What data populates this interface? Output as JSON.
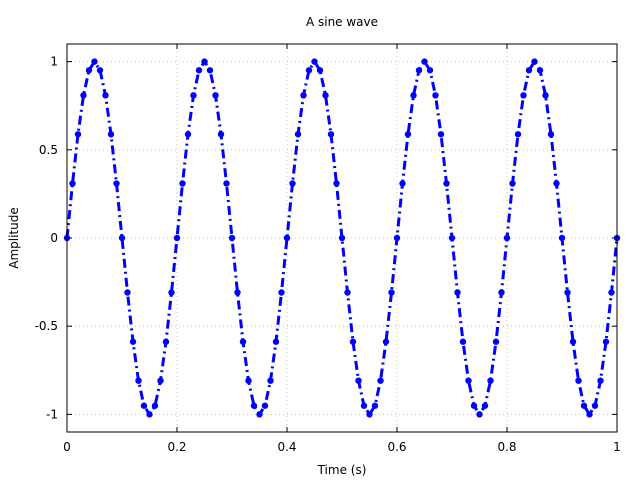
{
  "chart_data": {
    "type": "line",
    "title": "A sine wave",
    "xlabel": "Time (s)",
    "ylabel": "Amplitude",
    "xlim": [
      0,
      1
    ],
    "ylim": [
      -1.1,
      1.1
    ],
    "xticks": [
      0,
      0.2,
      0.4,
      0.6,
      0.8,
      1
    ],
    "xtick_labels": [
      "0",
      "0.2",
      "0.4",
      "0.6",
      "0.8",
      "1"
    ],
    "yticks": [
      -1,
      -0.5,
      0,
      0.5,
      1
    ],
    "ytick_labels": [
      "-1",
      "-0.5",
      "0",
      "0.5",
      "1"
    ],
    "grid": true,
    "line_style": "dash-dot",
    "marker": "circle",
    "color": "#0000ff",
    "series": [
      {
        "x": [
          0,
          0.01,
          0.02,
          0.03,
          0.04,
          0.05,
          0.06,
          0.07,
          0.08,
          0.09,
          0.1,
          0.11,
          0.12,
          0.13,
          0.14,
          0.15,
          0.16,
          0.17,
          0.18,
          0.19,
          0.2,
          0.21,
          0.22,
          0.23,
          0.24,
          0.25,
          0.26,
          0.27,
          0.28,
          0.29,
          0.3,
          0.31,
          0.32,
          0.33,
          0.34,
          0.35,
          0.36,
          0.37,
          0.38,
          0.39,
          0.4,
          0.41,
          0.42,
          0.43,
          0.44,
          0.45,
          0.46,
          0.47,
          0.48,
          0.49,
          0.5,
          0.51,
          0.52,
          0.53,
          0.54,
          0.55,
          0.56,
          0.57,
          0.58,
          0.59,
          0.6,
          0.61,
          0.62,
          0.63,
          0.64,
          0.65,
          0.66,
          0.67,
          0.68,
          0.69,
          0.7,
          0.71,
          0.72,
          0.73,
          0.74,
          0.75,
          0.76,
          0.77,
          0.78,
          0.79,
          0.8,
          0.81,
          0.82,
          0.83,
          0.84,
          0.85,
          0.86,
          0.87,
          0.88,
          0.89,
          0.9,
          0.91,
          0.92,
          0.93,
          0.94,
          0.95,
          0.96,
          0.97,
          0.98,
          0.99,
          1.0
        ],
        "y": [
          0,
          0.309,
          0.588,
          0.809,
          0.951,
          1,
          0.951,
          0.809,
          0.588,
          0.309,
          0,
          -0.309,
          -0.588,
          -0.809,
          -0.951,
          -1,
          -0.951,
          -0.809,
          -0.588,
          -0.309,
          0,
          0.309,
          0.588,
          0.809,
          0.951,
          1,
          0.951,
          0.809,
          0.588,
          0.309,
          0,
          -0.309,
          -0.588,
          -0.809,
          -0.951,
          -1,
          -0.951,
          -0.809,
          -0.588,
          -0.309,
          0,
          0.309,
          0.588,
          0.809,
          0.951,
          1,
          0.951,
          0.809,
          0.588,
          0.309,
          0,
          -0.309,
          -0.588,
          -0.809,
          -0.951,
          -1,
          -0.951,
          -0.809,
          -0.588,
          -0.309,
          0,
          0.309,
          0.588,
          0.809,
          0.951,
          1,
          0.951,
          0.809,
          0.588,
          0.309,
          0,
          -0.309,
          -0.588,
          -0.809,
          -0.951,
          -1,
          -0.951,
          -0.809,
          -0.588,
          -0.309,
          0,
          0.309,
          0.588,
          0.809,
          0.951,
          1,
          0.951,
          0.809,
          0.588,
          0.309,
          0,
          -0.309,
          -0.588,
          -0.809,
          -0.951,
          -1,
          -0.951,
          -0.809,
          -0.588,
          -0.309,
          0
        ]
      }
    ]
  }
}
